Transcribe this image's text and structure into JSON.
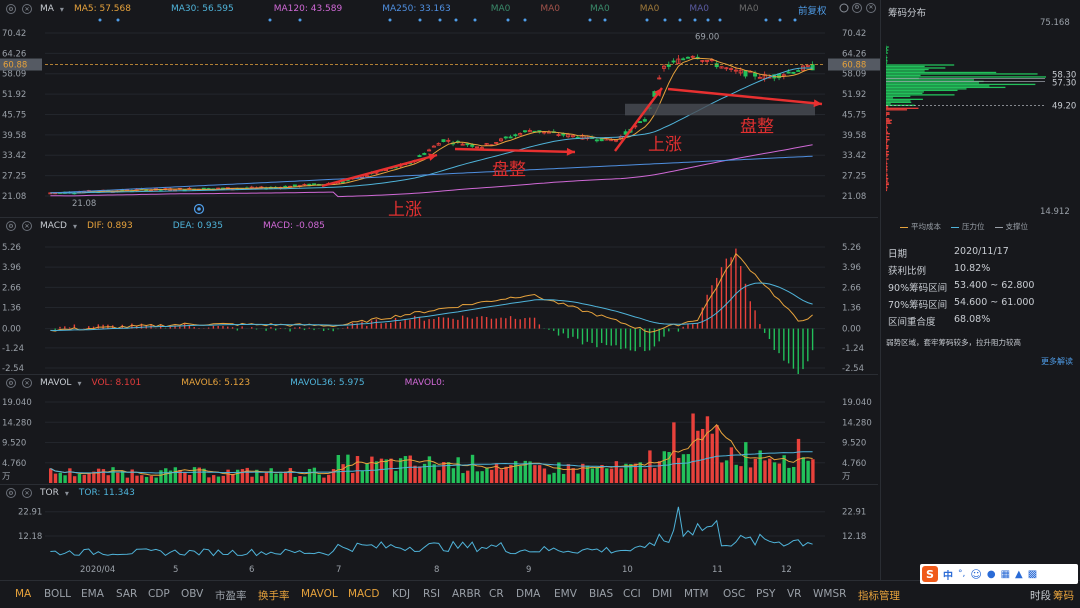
{
  "app": {
    "bottom_right_tabs": [
      "时段",
      "筹码"
    ]
  },
  "main_header": {
    "name": "MA",
    "items": [
      {
        "label": "MA5: 57.568",
        "color": "#e6a23c"
      },
      {
        "label": "MA30: 56.595",
        "color": "#4fb3d9"
      },
      {
        "label": "MA120: 43.589",
        "color": "#d069d6"
      },
      {
        "label": "MA250: 33.163",
        "color": "#4f8fe0"
      },
      {
        "label": "MA0",
        "color": "#3a8a6a"
      },
      {
        "label": "MA0",
        "color": "#a0524a"
      },
      {
        "label": "MA0",
        "color": "#3a8a6a"
      },
      {
        "label": "MA0",
        "color": "#a07a3a"
      },
      {
        "label": "MA0",
        "color": "#5a5aa0"
      },
      {
        "label": "MA0",
        "color": "#6a6a6a"
      }
    ],
    "restore_label": "前复权"
  },
  "price_axis": [
    "70.42",
    "64.26",
    "58.09",
    "51.92",
    "45.75",
    "39.58",
    "33.42",
    "27.25",
    "21.08"
  ],
  "price_current": "60.88",
  "price_annotations": {
    "high": "69.00",
    "low": "21.08"
  },
  "chart_annotations": [
    {
      "text": "上涨",
      "color": "#e03030"
    },
    {
      "text": "盘整",
      "color": "#e03030"
    },
    {
      "text": "上涨",
      "color": "#e03030"
    },
    {
      "text": "盘整",
      "color": "#e03030"
    }
  ],
  "macd_header": {
    "name": "MACD",
    "items": [
      {
        "label": "DIF: 0.893",
        "color": "#e6a23c"
      },
      {
        "label": "DEA: 0.935",
        "color": "#4fb3d9"
      },
      {
        "label": "MACD: -0.085",
        "color": "#d069d6"
      }
    ]
  },
  "macd_axis": [
    "5.26",
    "3.96",
    "2.66",
    "1.36",
    "0.00",
    "-1.24",
    "-2.54"
  ],
  "vol_header": {
    "name": "MAVOL",
    "items": [
      {
        "label": "VOL: 8.101",
        "color": "#e03c3c"
      },
      {
        "label": "MAVOL6: 5.123",
        "color": "#e6a23c"
      },
      {
        "label": "MAVOL36: 5.975",
        "color": "#4fb3d9"
      },
      {
        "label": "MAVOL0:",
        "color": "#d069d6"
      }
    ]
  },
  "vol_axis": [
    "19.040",
    "14.280",
    "9.520",
    "4.760",
    "万"
  ],
  "tor_header": {
    "name": "TOR",
    "items": [
      {
        "label": "TOR: 11.343",
        "color": "#4fb3d9"
      }
    ]
  },
  "tor_axis": [
    "22.91",
    "12.18"
  ],
  "x_axis": [
    "2020/04",
    "5",
    "6",
    "7",
    "8",
    "9",
    "10",
    "11",
    "12"
  ],
  "indicator_tabs": [
    "MA",
    "BOLL",
    "EMA",
    "SAR",
    "CDP",
    "OBV",
    "市盈率",
    "换手率",
    "MAVOL",
    "MACD",
    "KDJ",
    "RSI",
    "ARBR",
    "CR",
    "DMA",
    "EMV",
    "BIAS",
    "CCI",
    "DMI",
    "MTM",
    "OSC",
    "PSY",
    "VR",
    "WMSR",
    "指标管理"
  ],
  "chip_panel": {
    "title": "筹码分布",
    "top_price": "75.168",
    "bottom_price": "14.912",
    "level_labels": [
      "58.30",
      "57.30",
      "49.20"
    ],
    "legend": [
      "平均成本",
      "压力位",
      "支撑位"
    ],
    "date_label": "日期",
    "date_value": "2020/11/17",
    "profit_label": "获利比例",
    "profit_value": "10.82%",
    "range90_label": "90%筹码区间",
    "range90_value": "53.400 ~ 62.800",
    "range70_label": "70%筹码区间",
    "range70_value": "54.600 ~ 61.000",
    "overlap_label": "区间重合度",
    "overlap_value": "68.08%",
    "note": "弱势区域，套牢筹码较多，拉升阻力较高",
    "more_link": "更多解读"
  },
  "ime_bar": {
    "logo": "S",
    "mode": "中",
    "punct": "°,"
  }
}
